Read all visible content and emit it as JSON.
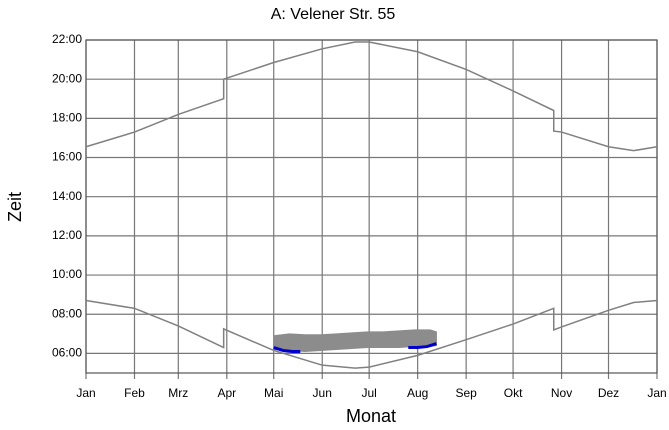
{
  "chart_data": {
    "type": "line",
    "title": "A: Velener Str. 55",
    "xlabel": "Monat",
    "ylabel": "Zeit",
    "xlim": [
      0,
      365
    ],
    "ylim": [
      5,
      22
    ],
    "grid": true,
    "xticks": [
      {
        "value": 0,
        "label": "Jan"
      },
      {
        "value": 31,
        "label": "Feb"
      },
      {
        "value": 59,
        "label": "Mrz"
      },
      {
        "value": 90,
        "label": "Apr"
      },
      {
        "value": 120,
        "label": "Mai"
      },
      {
        "value": 151,
        "label": "Jun"
      },
      {
        "value": 181,
        "label": "Jul"
      },
      {
        "value": 212,
        "label": "Aug"
      },
      {
        "value": 243,
        "label": "Sep"
      },
      {
        "value": 273,
        "label": "Okt"
      },
      {
        "value": 304,
        "label": "Nov"
      },
      {
        "value": 334,
        "label": "Dez"
      },
      {
        "value": 365,
        "label": "Jan"
      }
    ],
    "yticks": [
      {
        "value": 6,
        "label": "06:00"
      },
      {
        "value": 8,
        "label": "08:00"
      },
      {
        "value": 10,
        "label": "10:00"
      },
      {
        "value": 12,
        "label": "12:00"
      },
      {
        "value": 14,
        "label": "14:00"
      },
      {
        "value": 16,
        "label": "16:00"
      },
      {
        "value": 18,
        "label": "18:00"
      },
      {
        "value": 20,
        "label": "20:00"
      },
      {
        "value": 22,
        "label": "22:00"
      }
    ],
    "series": [
      {
        "color": "#808080",
        "x": [
          0,
          31,
          59,
          88,
          88,
          120,
          151,
          172,
          181,
          212,
          243,
          273,
          299,
          299,
          304,
          334,
          350,
          365
        ],
        "values": [
          16.55,
          17.3,
          18.2,
          19.0,
          20.0,
          20.85,
          21.55,
          21.9,
          21.9,
          21.4,
          20.5,
          19.4,
          18.4,
          17.35,
          17.3,
          16.55,
          16.35,
          16.55
        ]
      },
      {
        "color": "#808080",
        "x": [
          0,
          31,
          59,
          88,
          88,
          120,
          151,
          172,
          181,
          212,
          243,
          273,
          299,
          299,
          304,
          334,
          350,
          365
        ],
        "values": [
          8.7,
          8.3,
          7.4,
          6.3,
          7.25,
          6.15,
          5.4,
          5.25,
          5.3,
          5.9,
          6.7,
          7.5,
          8.3,
          7.2,
          7.35,
          8.2,
          8.6,
          8.7
        ]
      },
      {
        "type": "band",
        "color": "#8c8c8c",
        "x": [
          120,
          130,
          140,
          150,
          160,
          170,
          180,
          190,
          200,
          210,
          220,
          224
        ],
        "low": [
          6.2,
          6.15,
          6.1,
          6.15,
          6.2,
          6.25,
          6.3,
          6.3,
          6.3,
          6.35,
          6.35,
          6.4
        ],
        "high": [
          6.9,
          7.0,
          6.95,
          6.95,
          7.0,
          7.05,
          7.1,
          7.1,
          7.15,
          7.2,
          7.2,
          7.1
        ]
      },
      {
        "color": "#0000cc",
        "x": [
          120,
          126,
          132,
          137,
          170,
          206,
          212,
          218,
          224
        ],
        "values": [
          6.3,
          6.15,
          6.1,
          6.1,
          null,
          6.3,
          6.3,
          6.35,
          6.5
        ]
      }
    ]
  }
}
